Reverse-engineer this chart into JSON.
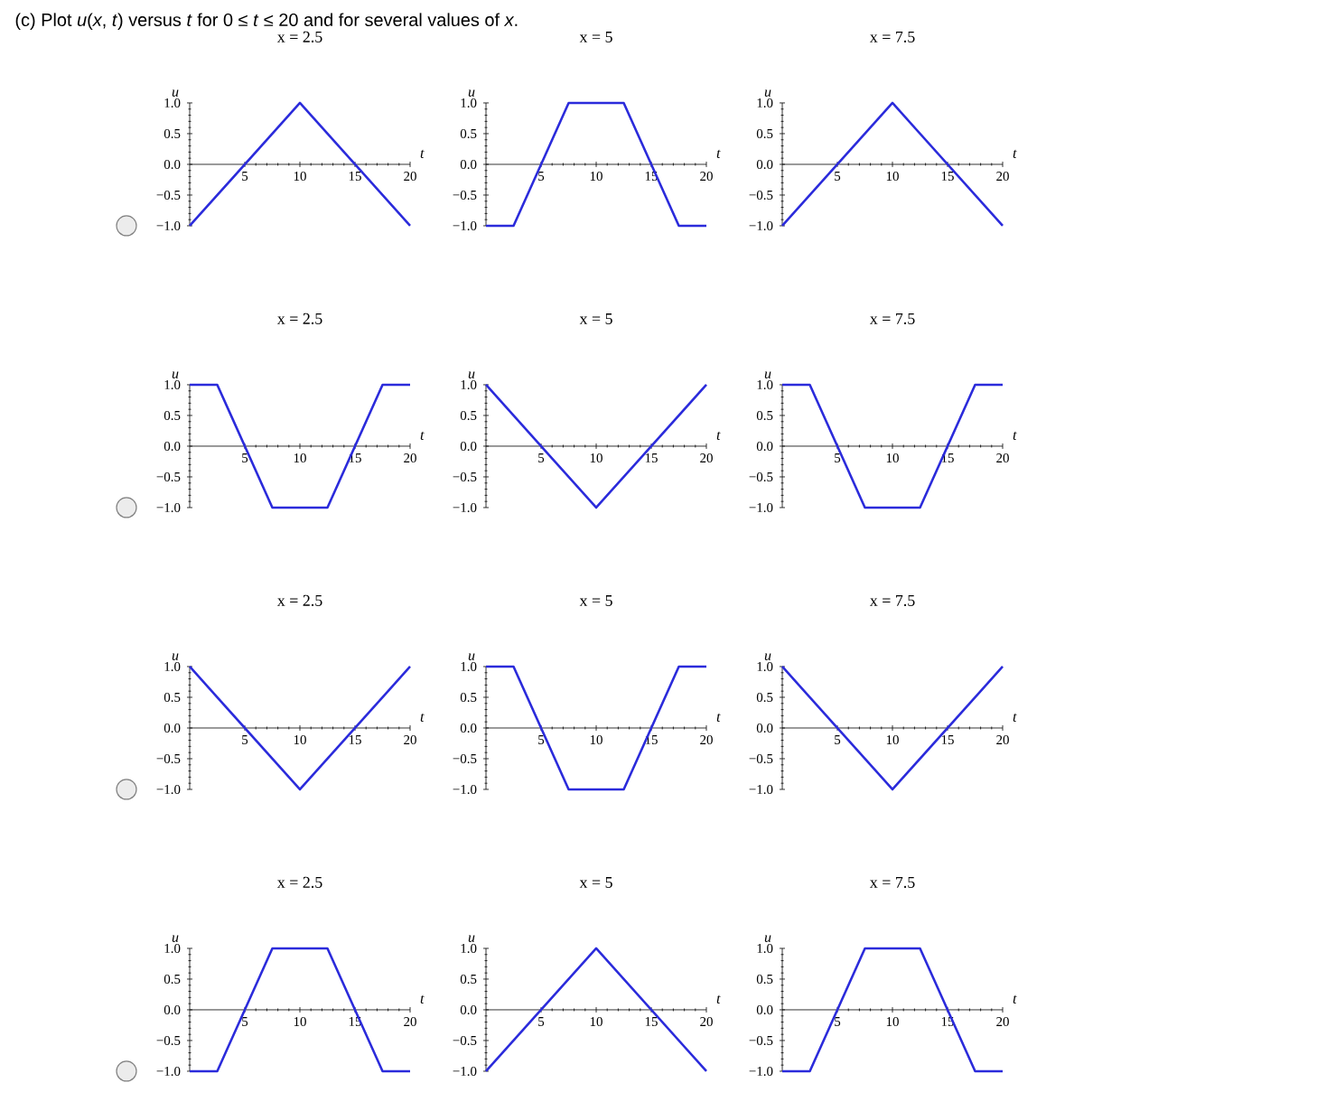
{
  "chart_data": [
    {
      "type": "line",
      "title": "x = 2.5",
      "xlabel": "t",
      "ylabel": "u",
      "annotations": [
        "(c) Plot *u*(*x*, *t*) versus *t* for 0 ≤ *t* ≤ 20 and for several values of *x*."
      ],
      "x": [
        0,
        10,
        20
      ],
      "series": [
        {
          "color": "#2b2bdb",
          "values": [
            -1,
            1,
            -1
          ]
        }
      ],
      "xlim": [
        0,
        20
      ],
      "ylim": [
        -1,
        1
      ],
      "xticks": [
        5,
        10,
        15,
        20
      ],
      "yticks": [
        {
          "value": -1,
          "label": "−1.0"
        },
        {
          "value": -0.5,
          "label": "−0.5"
        },
        {
          "value": 0,
          "label": "0.0"
        },
        {
          "value": 0.5,
          "label": "0.5"
        },
        {
          "value": 1,
          "label": "1.0"
        }
      ]
    },
    {
      "type": "line",
      "title": "x = 5",
      "xlabel": "t",
      "ylabel": "u",
      "x": [
        0,
        2.5,
        7.5,
        12.5,
        17.5,
        20
      ],
      "series": [
        {
          "color": "#2b2bdb",
          "values": [
            -1,
            -1,
            1,
            1,
            -1,
            -1
          ]
        }
      ],
      "xlim": [
        0,
        20
      ],
      "ylim": [
        -1,
        1
      ],
      "xticks": [
        5,
        10,
        15,
        20
      ],
      "yticks": [
        {
          "value": -1,
          "label": "−1.0"
        },
        {
          "value": -0.5,
          "label": "−0.5"
        },
        {
          "value": 0,
          "label": "0.0"
        },
        {
          "value": 0.5,
          "label": "0.5"
        },
        {
          "value": 1,
          "label": "1.0"
        }
      ]
    },
    {
      "type": "line",
      "title": "x = 7.5",
      "xlabel": "t",
      "ylabel": "u",
      "x": [
        0,
        10,
        20
      ],
      "series": [
        {
          "color": "#2b2bdb",
          "values": [
            -1,
            1,
            -1
          ]
        }
      ],
      "xlim": [
        0,
        20
      ],
      "ylim": [
        -1,
        1
      ],
      "xticks": [
        5,
        10,
        15,
        20
      ],
      "yticks": [
        {
          "value": -1,
          "label": "−1.0"
        },
        {
          "value": -0.5,
          "label": "−0.5"
        },
        {
          "value": 0,
          "label": "0.0"
        },
        {
          "value": 0.5,
          "label": "0.5"
        },
        {
          "value": 1,
          "label": "1.0"
        }
      ]
    },
    {
      "type": "line",
      "title": "x = 2.5",
      "xlabel": "t",
      "ylabel": "u",
      "x": [
        0,
        2.5,
        7.5,
        12.5,
        17.5,
        20
      ],
      "series": [
        {
          "color": "#2b2bdb",
          "values": [
            1,
            1,
            -1,
            -1,
            1,
            1
          ]
        }
      ],
      "xlim": [
        0,
        20
      ],
      "ylim": [
        -1,
        1
      ],
      "xticks": [
        5,
        10,
        15,
        20
      ],
      "yticks": [
        {
          "value": -1,
          "label": "−1.0"
        },
        {
          "value": -0.5,
          "label": "−0.5"
        },
        {
          "value": 0,
          "label": "0.0"
        },
        {
          "value": 0.5,
          "label": "0.5"
        },
        {
          "value": 1,
          "label": "1.0"
        }
      ]
    },
    {
      "type": "line",
      "title": "x = 5",
      "xlabel": "t",
      "ylabel": "u",
      "x": [
        0,
        10,
        20
      ],
      "series": [
        {
          "color": "#2b2bdb",
          "values": [
            1,
            -1,
            1
          ]
        }
      ],
      "xlim": [
        0,
        20
      ],
      "ylim": [
        -1,
        1
      ],
      "xticks": [
        5,
        10,
        15,
        20
      ],
      "yticks": [
        {
          "value": -1,
          "label": "−1.0"
        },
        {
          "value": -0.5,
          "label": "−0.5"
        },
        {
          "value": 0,
          "label": "0.0"
        },
        {
          "value": 0.5,
          "label": "0.5"
        },
        {
          "value": 1,
          "label": "1.0"
        }
      ]
    },
    {
      "type": "line",
      "title": "x = 7.5",
      "xlabel": "t",
      "ylabel": "u",
      "x": [
        0,
        2.5,
        7.5,
        12.5,
        17.5,
        20
      ],
      "series": [
        {
          "color": "#2b2bdb",
          "values": [
            1,
            1,
            -1,
            -1,
            1,
            1
          ]
        }
      ],
      "xlim": [
        0,
        20
      ],
      "ylim": [
        -1,
        1
      ],
      "xticks": [
        5,
        10,
        15,
        20
      ],
      "yticks": [
        {
          "value": -1,
          "label": "−1.0"
        },
        {
          "value": -0.5,
          "label": "−0.5"
        },
        {
          "value": 0,
          "label": "0.0"
        },
        {
          "value": 0.5,
          "label": "0.5"
        },
        {
          "value": 1,
          "label": "1.0"
        }
      ]
    },
    {
      "type": "line",
      "title": "x = 2.5",
      "xlabel": "t",
      "ylabel": "u",
      "x": [
        0,
        10,
        20
      ],
      "series": [
        {
          "color": "#2b2bdb",
          "values": [
            1,
            -1,
            1
          ]
        }
      ],
      "xlim": [
        0,
        20
      ],
      "ylim": [
        -1,
        1
      ],
      "xticks": [
        5,
        10,
        15,
        20
      ],
      "yticks": [
        {
          "value": -1,
          "label": "−1.0"
        },
        {
          "value": -0.5,
          "label": "−0.5"
        },
        {
          "value": 0,
          "label": "0.0"
        },
        {
          "value": 0.5,
          "label": "0.5"
        },
        {
          "value": 1,
          "label": "1.0"
        }
      ]
    },
    {
      "type": "line",
      "title": "x = 5",
      "xlabel": "t",
      "ylabel": "u",
      "x": [
        0,
        2.5,
        7.5,
        12.5,
        17.5,
        20
      ],
      "series": [
        {
          "color": "#2b2bdb",
          "values": [
            1,
            1,
            -1,
            -1,
            1,
            1
          ]
        }
      ],
      "xlim": [
        0,
        20
      ],
      "ylim": [
        -1,
        1
      ],
      "xticks": [
        5,
        10,
        15,
        20
      ],
      "yticks": [
        {
          "value": -1,
          "label": "−1.0"
        },
        {
          "value": -0.5,
          "label": "−0.5"
        },
        {
          "value": 0,
          "label": "0.0"
        },
        {
          "value": 0.5,
          "label": "0.5"
        },
        {
          "value": 1,
          "label": "1.0"
        }
      ]
    },
    {
      "type": "line",
      "title": "x = 7.5",
      "xlabel": "t",
      "ylabel": "u",
      "x": [
        0,
        10,
        20
      ],
      "series": [
        {
          "color": "#2b2bdb",
          "values": [
            1,
            -1,
            1
          ]
        }
      ],
      "xlim": [
        0,
        20
      ],
      "ylim": [
        -1,
        1
      ],
      "xticks": [
        5,
        10,
        15,
        20
      ],
      "yticks": [
        {
          "value": -1,
          "label": "−1.0"
        },
        {
          "value": -0.5,
          "label": "−0.5"
        },
        {
          "value": 0,
          "label": "0.0"
        },
        {
          "value": 0.5,
          "label": "0.5"
        },
        {
          "value": 1,
          "label": "1.0"
        }
      ]
    },
    {
      "type": "line",
      "title": "x = 2.5",
      "xlabel": "t",
      "ylabel": "u",
      "x": [
        0,
        2.5,
        7.5,
        12.5,
        17.5,
        20
      ],
      "series": [
        {
          "color": "#2b2bdb",
          "values": [
            -1,
            -1,
            1,
            1,
            -1,
            -1
          ]
        }
      ],
      "xlim": [
        0,
        20
      ],
      "ylim": [
        -1,
        1
      ],
      "xticks": [
        5,
        10,
        15,
        20
      ],
      "yticks": [
        {
          "value": -1,
          "label": "−1.0"
        },
        {
          "value": -0.5,
          "label": "−0.5"
        },
        {
          "value": 0,
          "label": "0.0"
        },
        {
          "value": 0.5,
          "label": "0.5"
        },
        {
          "value": 1,
          "label": "1.0"
        }
      ]
    },
    {
      "type": "line",
      "title": "x = 5",
      "xlabel": "t",
      "ylabel": "u",
      "x": [
        0,
        10,
        20
      ],
      "series": [
        {
          "color": "#2b2bdb",
          "values": [
            -1,
            1,
            -1
          ]
        }
      ],
      "xlim": [
        0,
        20
      ],
      "ylim": [
        -1,
        1
      ],
      "xticks": [
        5,
        10,
        15,
        20
      ],
      "yticks": [
        {
          "value": -1,
          "label": "−1.0"
        },
        {
          "value": -0.5,
          "label": "−0.5"
        },
        {
          "value": 0,
          "label": "0.0"
        },
        {
          "value": 0.5,
          "label": "0.5"
        },
        {
          "value": 1,
          "label": "1.0"
        }
      ]
    },
    {
      "type": "line",
      "title": "x = 7.5",
      "xlabel": "t",
      "ylabel": "u",
      "x": [
        0,
        2.5,
        7.5,
        12.5,
        17.5,
        20
      ],
      "series": [
        {
          "color": "#2b2bdb",
          "values": [
            -1,
            -1,
            1,
            1,
            -1,
            -1
          ]
        }
      ],
      "xlim": [
        0,
        20
      ],
      "ylim": [
        -1,
        1
      ],
      "xticks": [
        5,
        10,
        15,
        20
      ],
      "yticks": [
        {
          "value": -1,
          "label": "−1.0"
        },
        {
          "value": -0.5,
          "label": "−0.5"
        },
        {
          "value": 0,
          "label": "0.0"
        },
        {
          "value": 0.5,
          "label": "0.5"
        },
        {
          "value": 1,
          "label": "1.0"
        }
      ]
    }
  ]
}
